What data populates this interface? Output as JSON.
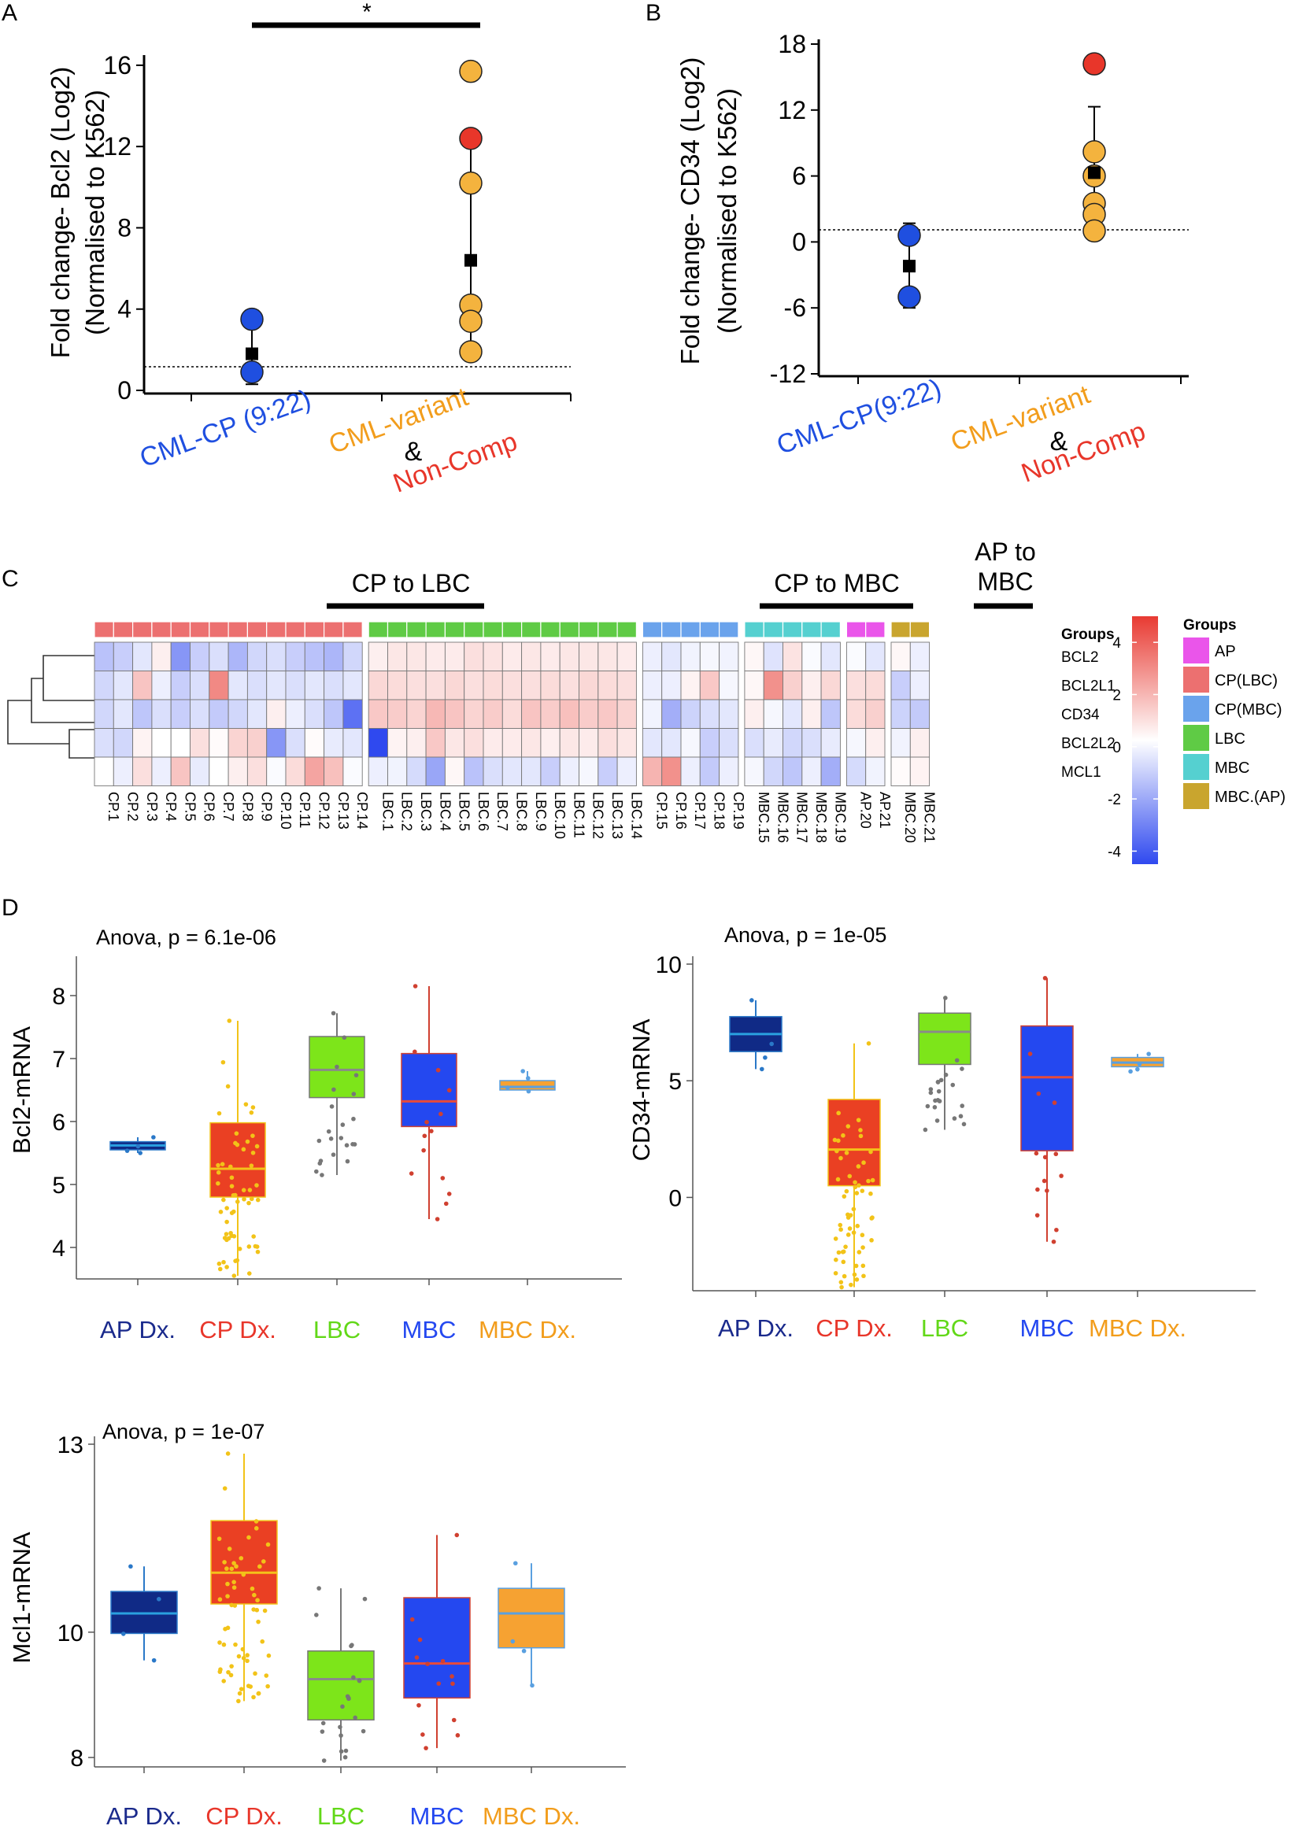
{
  "figure": "Bcl2 family and CD34 expression in CML",
  "panels": {
    "A": {
      "label": "A",
      "ylabel_line1": "Fold change- Bcl2 (Log2)",
      "ylabel_line2": "(Normalised to K562)",
      "yticks": [
        "0",
        "4",
        "8",
        "12",
        "16"
      ],
      "xlabels": {
        "group1": "CML-CP (9:22)",
        "group2_line1": "CML-variant",
        "amp": "&",
        "group2_line2": "Non-Comp"
      },
      "significance": "*"
    },
    "B": {
      "label": "B",
      "ylabel_line1": "Fold change- CD34 (Log2)",
      "ylabel_line2": "(Normalised to K562)",
      "yticks": [
        "-12",
        "-6",
        "0",
        "6",
        "12",
        "18"
      ],
      "xlabels": {
        "group1": "CML-CP(9:22)",
        "group2_line1": "CML-variant",
        "amp": "&",
        "group2_line2": "Non-Comp"
      }
    },
    "C": {
      "label": "C",
      "bracket_cp_lbc": "CP to LBC",
      "bracket_cp_mbc": "CP to MBC",
      "bracket_ap_mbc_line1": "AP to",
      "bracket_ap_mbc_line2": "MBC",
      "groups_row_label": "Groups",
      "legend_title": "Groups",
      "legend_items": [
        "AP",
        "CP(LBC)",
        "CP(MBC)",
        "LBC",
        "MBC",
        "MBC.(AP)"
      ],
      "colorbar_ticks": [
        "4",
        "2",
        "0",
        "-2",
        "-4"
      ]
    },
    "D": {
      "label": "D",
      "bcl2_stat": "Anova, p = 6.1e-06",
      "bcl2_ylabel": "Bcl2-mRNA",
      "bcl2_yticks": [
        "4",
        "5",
        "6",
        "7",
        "8"
      ],
      "cd34_stat": "Anova, p = 1e-05",
      "cd34_ylabel": "CD34-mRNA",
      "cd34_yticks": [
        "0",
        "5",
        "10"
      ],
      "mcl1_stat": "Anova, p = 1e-07",
      "mcl1_ylabel": "Mcl1-mRNA",
      "mcl1_yticks": [
        "8",
        "10",
        "13"
      ],
      "categories": [
        "AP Dx.",
        "CP Dx.",
        "LBC",
        "MBC",
        "MBC Dx."
      ]
    }
  },
  "colors": {
    "cp": "#1f4fe0",
    "variant_orange": "#f29d1c",
    "noncomp_red": "#e8362a",
    "heat_high": "#e83a32",
    "heat_low": "#2f49ef",
    "ap": "#ea55ea",
    "cp_lbc": "#ec7070",
    "cp_mbc": "#6aa3ec",
    "lbc": "#5fcb45",
    "mbc": "#55d0d0",
    "mbc_ap": "#c9a52e",
    "box_ap": "#102a86",
    "box_cp": "#ea4023",
    "box_lbc": "#7de51a",
    "box_mbc": "#2448f0",
    "box_mbcdx": "#f6a232"
  },
  "chart_data": [
    {
      "panel": "A",
      "type": "scatter",
      "title": "",
      "xlabel": "",
      "ylabel": "Fold change- Bcl2 (Log2) (Normalised to K562)",
      "ylim": [
        0,
        16.5
      ],
      "reference_line": 1,
      "categories": [
        "CML-CP (9:22)",
        "CML-variant & Non-Comp"
      ],
      "series": [
        {
          "name": "CML-CP (9:22)",
          "color": "blue",
          "values": [
            3.5,
            0.9
          ]
        },
        {
          "name": "CML-variant",
          "color": "orange",
          "values": [
            15.7,
            10.2,
            4.2,
            3.4,
            1.9
          ]
        },
        {
          "name": "Non-Comp",
          "color": "red",
          "values": [
            12.4
          ]
        }
      ],
      "means": [
        1.8,
        6.4
      ],
      "sd_low": [
        0.3,
        1.9
      ],
      "sd_high": [
        3.3,
        12.4
      ],
      "significance": {
        "between": [
          "CML-CP (9:22)",
          "CML-variant & Non-Comp"
        ],
        "label": "*"
      }
    },
    {
      "panel": "B",
      "type": "scatter",
      "ylabel": "Fold change- CD34 (Log2) (Normalised to K562)",
      "ylim": [
        -12,
        18
      ],
      "reference_line": 1,
      "categories": [
        "CML-CP(9:22)",
        "CML-variant & Non-Comp"
      ],
      "series": [
        {
          "name": "CML-CP(9:22)",
          "color": "blue",
          "values": [
            0.6,
            -5.0
          ]
        },
        {
          "name": "CML-variant",
          "color": "orange",
          "values": [
            8.2,
            6.0,
            3.5,
            2.5,
            1.0
          ]
        },
        {
          "name": "Non-Comp",
          "color": "red",
          "values": [
            16.2
          ]
        }
      ],
      "means": [
        -2.2,
        6.3
      ],
      "sd_low": [
        -6.0,
        0.7
      ],
      "sd_high": [
        1.7,
        12.3
      ]
    },
    {
      "panel": "C",
      "type": "heatmap",
      "rows": [
        "BCL2",
        "BCL2L1",
        "CD34",
        "BCL2L2",
        "MCL1"
      ],
      "columns": [
        "CP.1",
        "CP.2",
        "CP.3",
        "CP.4",
        "CP.5",
        "CP.6",
        "CP.7",
        "CP.8",
        "CP.9",
        "CP.10",
        "CP.11",
        "CP.12",
        "CP.13",
        "CP.14",
        "LBC.1",
        "LBC.2",
        "LBC.3",
        "LBC.4",
        "LBC.5",
        "LBC.6",
        "LBC.7",
        "LBC.8",
        "LBC.9",
        "LBC.10",
        "LBC.11",
        "LBC.12",
        "LBC.13",
        "LBC.14",
        "CP.15",
        "CP.16",
        "CP.17",
        "CP.18",
        "CP.19",
        "MBC.15",
        "MBC.16",
        "MBC.17",
        "MBC.18",
        "MBC.19",
        "AP.20",
        "AP.21",
        "MBC.20",
        "MBC.21"
      ],
      "column_groups": [
        "CP(LBC)",
        "CP(LBC)",
        "CP(LBC)",
        "CP(LBC)",
        "CP(LBC)",
        "CP(LBC)",
        "CP(LBC)",
        "CP(LBC)",
        "CP(LBC)",
        "CP(LBC)",
        "CP(LBC)",
        "CP(LBC)",
        "CP(LBC)",
        "CP(LBC)",
        "LBC",
        "LBC",
        "LBC",
        "LBC",
        "LBC",
        "LBC",
        "LBC",
        "LBC",
        "LBC",
        "LBC",
        "LBC",
        "LBC",
        "LBC",
        "LBC",
        "CP(MBC)",
        "CP(MBC)",
        "CP(MBC)",
        "CP(MBC)",
        "CP(MBC)",
        "MBC",
        "MBC",
        "MBC",
        "MBC",
        "MBC",
        "AP",
        "AP",
        "MBC.(AP)",
        "MBC.(AP)"
      ],
      "column_blocks": [
        14,
        14,
        5,
        5,
        2,
        2
      ],
      "color_range": [
        -4.5,
        5
      ],
      "values": [
        [
          -1.5,
          -1.2,
          -0.6,
          0.4,
          -2.6,
          -1.2,
          -0.8,
          -1.8,
          -1.0,
          -0.8,
          -1.2,
          -1.5,
          -1.8,
          -1.0,
          0.4,
          0.6,
          0.6,
          0.5,
          0.5,
          0.8,
          0.7,
          0.5,
          0.6,
          0.5,
          0.6,
          0.6,
          0.6,
          0.5,
          -0.4,
          -0.6,
          -0.3,
          -0.2,
          -0.3,
          0.2,
          -0.7,
          0.7,
          -0.1,
          -0.6,
          -0.1,
          -0.6,
          0.2,
          -0.4
        ],
        [
          -1.0,
          -0.6,
          1.5,
          -0.4,
          -1.2,
          -0.8,
          3.0,
          -0.6,
          -0.8,
          -0.6,
          -0.8,
          -0.6,
          -0.8,
          -0.6,
          1.0,
          0.9,
          0.8,
          0.8,
          1.0,
          0.8,
          0.9,
          0.8,
          0.8,
          0.9,
          0.8,
          1.0,
          0.9,
          0.8,
          -0.4,
          -0.4,
          0.3,
          1.4,
          -0.2,
          0.2,
          2.8,
          1.2,
          0.4,
          1.0,
          0.8,
          0.9,
          -1.2,
          -0.4
        ],
        [
          -1.0,
          -0.6,
          -1.4,
          -0.8,
          -1.2,
          -0.8,
          -1.3,
          -1.0,
          -0.6,
          0.4,
          -0.4,
          -0.8,
          -1.4,
          -3.5,
          1.4,
          1.3,
          1.1,
          1.8,
          1.5,
          1.1,
          1.3,
          0.9,
          1.5,
          1.3,
          1.6,
          1.3,
          1.4,
          1.1,
          -0.3,
          -2.0,
          -1.1,
          -0.8,
          -0.6,
          0.4,
          -0.2,
          -0.6,
          0.4,
          -1.4,
          0.9,
          1.2,
          -1.1,
          -1.3
        ],
        [
          -0.8,
          -1.0,
          0.3,
          0.0,
          0.0,
          0.8,
          0.1,
          1.1,
          1.2,
          -2.6,
          -0.8,
          0.1,
          -0.5,
          -0.6,
          -4.5,
          0.3,
          0.4,
          1.4,
          0.6,
          0.8,
          0.5,
          0.5,
          0.6,
          0.4,
          0.6,
          0.5,
          0.8,
          0.6,
          -0.6,
          -0.6,
          -0.2,
          -1.2,
          -0.8,
          -0.8,
          -0.5,
          -1.0,
          -0.8,
          -0.5,
          -0.2,
          0.4,
          -0.3,
          0.4
        ],
        [
          0.0,
          -0.4,
          0.8,
          -0.4,
          1.5,
          -0.5,
          0.0,
          0.4,
          0.8,
          -0.1,
          0.9,
          2.3,
          1.6,
          -0.1,
          -0.4,
          -0.3,
          -0.9,
          -2.2,
          0.2,
          -1.5,
          -0.8,
          -0.6,
          -0.6,
          -1.2,
          -0.4,
          -0.2,
          -1.2,
          -0.4,
          1.9,
          2.8,
          -0.4,
          -1.3,
          -0.4,
          -0.2,
          -1.0,
          -1.4,
          -0.4,
          -2.0,
          -0.9,
          -0.3,
          0.1,
          0.3
        ]
      ]
    },
    {
      "panel": "D-Bcl2",
      "type": "box",
      "title": "Anova, p = 6.1e-06",
      "ylabel": "Bcl2-mRNA",
      "ylim": [
        3.5,
        8.5
      ],
      "categories": [
        "AP Dx.",
        "CP Dx.",
        "LBC",
        "MBC",
        "MBC Dx."
      ],
      "boxes": [
        {
          "min": 5.5,
          "q1": 5.55,
          "median": 5.62,
          "q3": 5.68,
          "max": 5.75
        },
        {
          "min": 3.55,
          "q1": 4.8,
          "median": 5.25,
          "q3": 5.98,
          "max": 7.6
        },
        {
          "min": 5.15,
          "q1": 6.38,
          "median": 6.82,
          "q3": 7.35,
          "max": 7.72
        },
        {
          "min": 4.45,
          "q1": 5.92,
          "median": 6.32,
          "q3": 7.08,
          "max": 8.15
        },
        {
          "min": 6.48,
          "q1": 6.5,
          "median": 6.55,
          "q3": 6.65,
          "max": 6.8
        }
      ]
    },
    {
      "panel": "D-CD34",
      "type": "box",
      "title": "Anova, p = 1e-05",
      "ylabel": "CD34-mRNA",
      "ylim": [
        -4,
        10
      ],
      "categories": [
        "AP Dx.",
        "CP Dx.",
        "LBC",
        "MBC",
        "MBC Dx."
      ],
      "boxes": [
        {
          "min": 5.5,
          "q1": 6.25,
          "median": 7.0,
          "q3": 7.75,
          "max": 8.45
        },
        {
          "min": -3.85,
          "q1": 0.5,
          "median": 2.05,
          "q3": 4.2,
          "max": 6.6
        },
        {
          "min": 2.9,
          "q1": 5.7,
          "median": 7.1,
          "q3": 7.9,
          "max": 8.55
        },
        {
          "min": -1.9,
          "q1": 2.0,
          "median": 5.15,
          "q3": 7.35,
          "max": 9.4
        },
        {
          "min": 5.4,
          "q1": 5.6,
          "median": 5.78,
          "q3": 6.0,
          "max": 6.15
        }
      ]
    },
    {
      "panel": "D-Mcl1",
      "type": "box",
      "title": "Anova, p = 1e-07",
      "ylabel": "Mcl1-mRNA",
      "ylim": [
        7.85,
        13
      ],
      "categories": [
        "AP Dx.",
        "CP Dx.",
        "LBC",
        "MBC",
        "MBC Dx."
      ],
      "boxes": [
        {
          "min": 9.55,
          "q1": 9.98,
          "median": 10.3,
          "q3": 10.65,
          "max": 11.05
        },
        {
          "min": 8.9,
          "q1": 10.45,
          "median": 10.95,
          "q3": 11.78,
          "max": 12.85
        },
        {
          "min": 7.95,
          "q1": 8.6,
          "median": 9.25,
          "q3": 9.7,
          "max": 10.7
        },
        {
          "min": 8.15,
          "q1": 8.95,
          "median": 9.5,
          "q3": 10.55,
          "max": 11.55
        },
        {
          "min": 9.15,
          "q1": 9.75,
          "median": 10.3,
          "q3": 10.7,
          "max": 11.1
        }
      ]
    }
  ]
}
